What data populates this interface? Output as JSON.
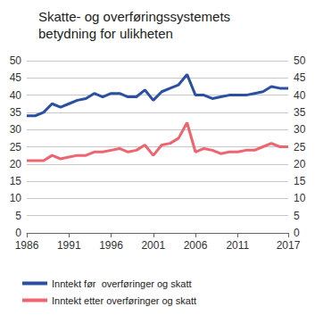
{
  "chart_data": {
    "type": "line",
    "title": "Skatte- og overføringssystemets betydning for ulikheten",
    "x": [
      1986,
      1987,
      1988,
      1989,
      1990,
      1991,
      1992,
      1993,
      1994,
      1995,
      1996,
      1997,
      1998,
      1999,
      2000,
      2001,
      2002,
      2003,
      2004,
      2005,
      2006,
      2007,
      2008,
      2009,
      2010,
      2011,
      2012,
      2013,
      2014,
      2015,
      2016,
      2017
    ],
    "series": [
      {
        "name": "Inntekt før  overføringer og skatt",
        "color": "#2b4fa3",
        "values": [
          34,
          34,
          35,
          37.5,
          36.5,
          37.5,
          38.5,
          39,
          40.5,
          39.5,
          40.5,
          40.5,
          39.5,
          39.5,
          41.5,
          38.5,
          41,
          42,
          43,
          46,
          40,
          40,
          39,
          39.5,
          40,
          40,
          40,
          40.5,
          41,
          42.5,
          42,
          42
        ]
      },
      {
        "name": "Inntekt etter overføringer og skatt",
        "color": "#f06470",
        "values": [
          21,
          21,
          21,
          22.5,
          21.5,
          22,
          22.5,
          22.5,
          23.5,
          23.5,
          24,
          24.5,
          23.5,
          24,
          25.5,
          22.5,
          25.5,
          26,
          27.5,
          32,
          23.5,
          24.5,
          24,
          23,
          23.5,
          23.5,
          24,
          24,
          25,
          26,
          25,
          25
        ]
      }
    ],
    "xlim": [
      1986,
      2017
    ],
    "xticks": [
      1986,
      1991,
      1996,
      2001,
      2006,
      2011,
      2017
    ],
    "ylim": [
      0,
      50
    ],
    "yticks": [
      0,
      5,
      10,
      15,
      20,
      25,
      30,
      35,
      40,
      45,
      50
    ],
    "y2lim": [
      0,
      50
    ],
    "y2ticks": [
      0,
      5,
      10,
      15,
      20,
      25,
      30,
      35,
      40,
      45,
      50
    ],
    "grid": true,
    "legend": "bottom"
  }
}
